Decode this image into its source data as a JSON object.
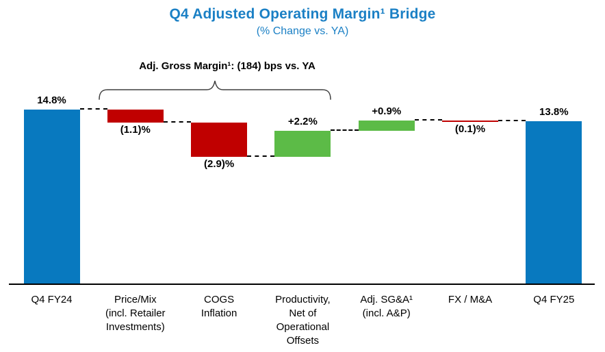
{
  "chart_data": {
    "type": "bar",
    "subtype": "waterfall-bridge",
    "title": "Q4 Adjusted Operating Margin¹ Bridge",
    "subtitle": "(% Change vs. YA)",
    "annotation": "Adj. Gross Margin¹: (184) bps vs. YA",
    "annotation_spans_categories": [
      "Price/Mix (incl. Retailer Investments)",
      "COGS Inflation",
      "Productivity, Net of Operational Offsets"
    ],
    "categories": [
      "Q4 FY24",
      "Price/Mix\n(incl. Retailer\nInvestments)",
      "COGS\nInflation",
      "Productivity,\nNet of\nOperational\nOffsets",
      "Adj. SG&A¹\n(incl. A&P)",
      "FX / M&A",
      "Q4 FY25"
    ],
    "values": [
      14.8,
      -1.1,
      -2.9,
      2.2,
      0.9,
      -0.1,
      13.8
    ],
    "value_labels": [
      "14.8%",
      "(1.1)%",
      "(2.9)%",
      "+2.2%",
      "+0.9%",
      "(0.1)%",
      "13.8%"
    ],
    "bar_roles": [
      "total",
      "decrease",
      "decrease",
      "increase",
      "increase",
      "decrease",
      "total"
    ],
    "ylim": [
      0,
      16
    ],
    "grid": "off",
    "legend": "none",
    "colors": {
      "total": "#0879BF",
      "decrease": "#C00000",
      "increase": "#5CBB47",
      "title_text": "#1B80C5",
      "annotation_text": "#000000",
      "axis_line": "#000000"
    }
  }
}
